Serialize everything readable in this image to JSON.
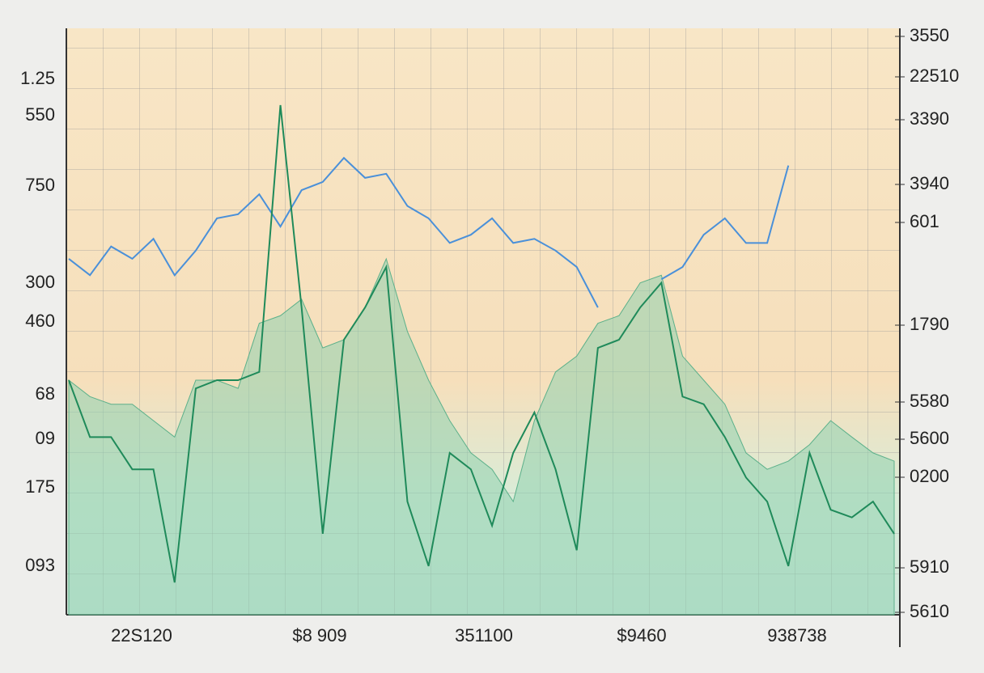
{
  "chart_data": {
    "type": "line",
    "y_labels": [
      "1.25",
      "550",
      "750",
      "300",
      "460",
      "68",
      "09",
      "175",
      "093"
    ],
    "y2_labels": [
      "3550",
      "22510",
      "3390",
      "3940",
      "601",
      "1790",
      "5580",
      "5600",
      "0200",
      "5910",
      "5610"
    ],
    "x_labels": [
      "22S120",
      "$8 909",
      "351100",
      "$9460",
      "938738"
    ],
    "ylim": [
      0,
      100
    ],
    "series": [
      {
        "style": "area",
        "color": "#8fd1b0",
        "values": [
          40.0,
          37.2,
          35.9,
          35.9,
          33.1,
          30.3,
          40.0,
          40.0,
          38.6,
          49.7,
          51.0,
          53.8,
          45.5,
          46.9,
          52.4,
          60.7,
          48.3,
          40.0,
          33.1,
          27.6,
          24.8,
          19.3,
          33.1,
          41.4,
          44.1,
          49.7,
          51.0,
          56.6,
          57.9,
          44.1,
          40.0,
          35.9,
          27.6,
          24.8,
          26.2,
          29.0,
          33.1,
          30.3,
          27.6,
          26.2
        ]
      },
      {
        "style": "line",
        "color": "#4a90d9",
        "values": [
          60.7,
          57.9,
          62.8,
          60.7,
          64.1,
          57.9,
          62.1,
          67.6,
          68.3,
          71.7,
          66.2,
          72.4,
          73.8,
          77.9,
          74.5,
          75.2,
          69.7,
          67.6,
          63.4,
          64.8,
          67.6,
          63.4,
          64.1,
          62.1,
          59.3,
          52.4,
          null,
          null,
          57.2,
          59.3,
          64.8,
          67.6,
          63.4,
          63.4,
          76.6,
          null,
          null,
          null,
          null,
          null
        ]
      },
      {
        "style": "line",
        "color": "#1f8a5a",
        "values": [
          40.0,
          30.3,
          30.3,
          24.8,
          24.8,
          5.5,
          38.6,
          40.0,
          40.0,
          41.4,
          86.9,
          52.4,
          13.8,
          46.9,
          52.4,
          59.3,
          19.3,
          8.3,
          27.6,
          24.8,
          15.2,
          27.6,
          34.5,
          24.8,
          11.0,
          45.5,
          46.9,
          52.4,
          56.6,
          37.2,
          35.9,
          30.3,
          23.4,
          19.3,
          8.3,
          27.6,
          17.9,
          16.6,
          19.3,
          13.8
        ]
      }
    ]
  }
}
